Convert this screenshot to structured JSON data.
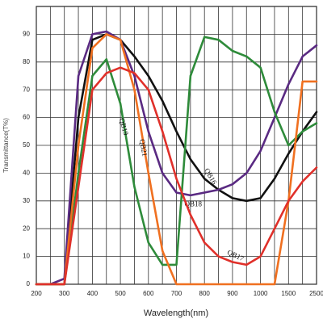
{
  "chart_data": {
    "type": "line",
    "x_label": "Wavelength(nm)",
    "y_label": "Transmittance(T%)",
    "categories": [
      "200",
      null,
      "300",
      null,
      "400",
      null,
      "500",
      null,
      "600",
      null,
      "700",
      null,
      "800",
      null,
      "900",
      null,
      "1000",
      null,
      "1500",
      null,
      "2500"
    ],
    "ylim": [
      0,
      100
    ],
    "yticks": [
      0,
      10,
      20,
      30,
      40,
      50,
      60,
      70,
      80,
      90
    ],
    "grid": true,
    "series": [
      {
        "name": "QB16",
        "color": "#111111",
        "values": [
          0,
          0,
          0,
          60,
          88,
          90,
          88,
          82,
          75,
          66,
          55,
          45,
          38,
          34,
          31,
          30,
          31,
          38,
          47,
          55,
          62
        ]
      },
      {
        "name": "QB18",
        "color": "#5a2a82",
        "values": [
          0,
          0,
          2,
          75,
          90,
          91,
          88,
          75,
          55,
          40,
          33,
          32,
          33,
          34,
          36,
          40,
          48,
          60,
          72,
          82,
          86
        ]
      },
      {
        "name": "QB19",
        "color": "#2e8b3a",
        "values": [
          0,
          0,
          0,
          40,
          75,
          81,
          65,
          35,
          15,
          7,
          7,
          75,
          89,
          88,
          84,
          82,
          78,
          62,
          50,
          55,
          58
        ]
      },
      {
        "name": "QB21",
        "color": "#f07020",
        "values": [
          0,
          0,
          0,
          50,
          85,
          90,
          88,
          70,
          40,
          12,
          0,
          0,
          0,
          0,
          0,
          0,
          0,
          0,
          30,
          73,
          73
        ]
      },
      {
        "name": "QB17",
        "color": "#e0302a",
        "values": [
          0,
          0,
          0,
          35,
          70,
          76,
          78,
          76,
          70,
          55,
          38,
          25,
          15,
          10,
          8,
          7,
          10,
          20,
          30,
          37,
          42
        ]
      }
    ]
  }
}
